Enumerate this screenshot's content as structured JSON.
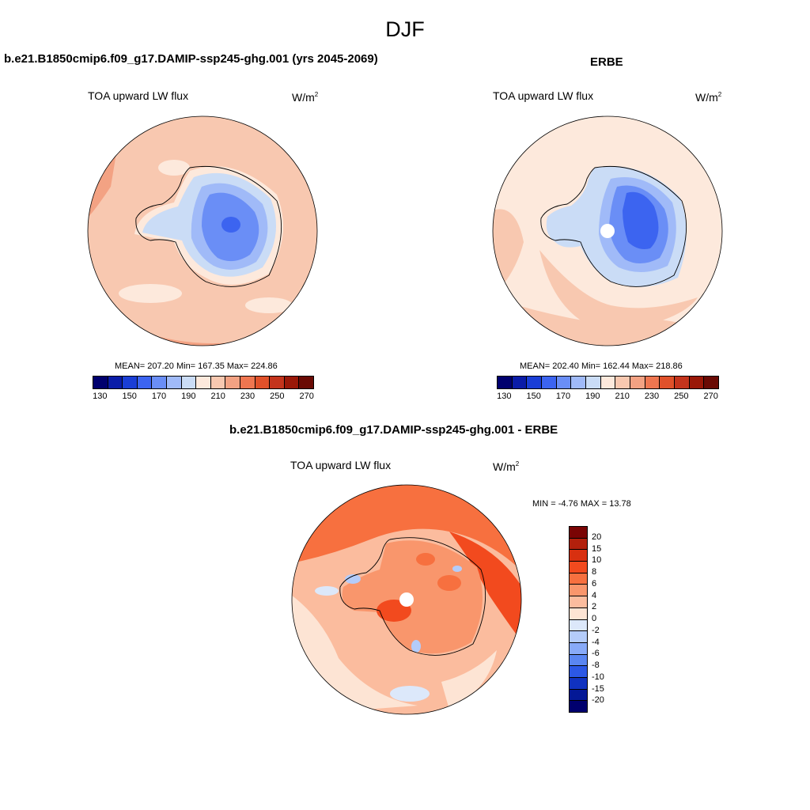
{
  "title": "DJF",
  "panels": [
    {
      "title": "b.e21.B1850cmip6.f09_g17.DAMIP-ssp245-ghg.001 (yrs 2045-2069)",
      "variable": "TOA upward LW flux",
      "unit_base": "W/m",
      "unit_exp": "2",
      "stats": "MEAN= 207.20  Min= 167.35  Max= 224.86"
    },
    {
      "title": "ERBE",
      "variable": "TOA upward LW flux",
      "unit_base": "W/m",
      "unit_exp": "2",
      "stats": "MEAN= 202.40  Min= 162.44  Max= 218.86"
    },
    {
      "title": "b.e21.B1850cmip6.f09_g17.DAMIP-ssp245-ghg.001 - ERBE",
      "variable": "TOA upward LW flux",
      "unit_base": "W/m",
      "unit_exp": "2",
      "stats": "MIN =  -4.76 MAX =  13.78"
    }
  ],
  "chart_data": [
    {
      "type": "heatmap",
      "projection": "south polar stereographic",
      "title": "b.e21.B1850cmip6.f09_g17.DAMIP-ssp245-ghg.001 (yrs 2045-2069)",
      "variable": "TOA upward LW flux",
      "units": "W/m2",
      "mean": 207.2,
      "min": 167.35,
      "max": 224.86,
      "colorbar": {
        "orientation": "horizontal",
        "ticks": [
          "130",
          "150",
          "170",
          "190",
          "210",
          "230",
          "250",
          "270"
        ],
        "colors": [
          "#00006e",
          "#0a1ca8",
          "#1a3ed6",
          "#3c64f0",
          "#6a8ef6",
          "#a0baf8",
          "#cadcf6",
          "#fde9dc",
          "#f8c8b0",
          "#f3a283",
          "#ef7650",
          "#e0512a",
          "#c4341c",
          "#9a1808",
          "#6a0a04"
        ]
      }
    },
    {
      "type": "heatmap",
      "projection": "south polar stereographic",
      "title": "ERBE",
      "variable": "TOA upward LW flux",
      "units": "W/m2",
      "mean": 202.4,
      "min": 162.44,
      "max": 218.86,
      "colorbar": {
        "orientation": "horizontal",
        "ticks": [
          "130",
          "150",
          "170",
          "190",
          "210",
          "230",
          "250",
          "270"
        ],
        "colors": [
          "#00006e",
          "#0a1ca8",
          "#1a3ed6",
          "#3c64f0",
          "#6a8ef6",
          "#a0baf8",
          "#cadcf6",
          "#fde9dc",
          "#f8c8b0",
          "#f3a283",
          "#ef7650",
          "#e0512a",
          "#c4341c",
          "#9a1808",
          "#6a0a04"
        ]
      }
    },
    {
      "type": "heatmap",
      "projection": "south polar stereographic",
      "title": "b.e21.B1850cmip6.f09_g17.DAMIP-ssp245-ghg.001 - ERBE",
      "variable": "TOA upward LW flux",
      "units": "W/m2",
      "min": -4.76,
      "max": 13.78,
      "colorbar": {
        "orientation": "vertical",
        "ticks": [
          "20",
          "15",
          "10",
          "8",
          "6",
          "4",
          "2",
          "0",
          "-2",
          "-4",
          "-6",
          "-8",
          "-10",
          "-15",
          "-20"
        ],
        "colors": [
          "#7a0404",
          "#b3200c",
          "#d83010",
          "#f24a1e",
          "#f7703f",
          "#f9966c",
          "#fbbc9e",
          "#fde4d4",
          "#dce8fa",
          "#b4ccfa",
          "#88aaf8",
          "#5a86f2",
          "#2c58e6",
          "#1032c0",
          "#041896",
          "#00006e"
        ]
      }
    }
  ]
}
